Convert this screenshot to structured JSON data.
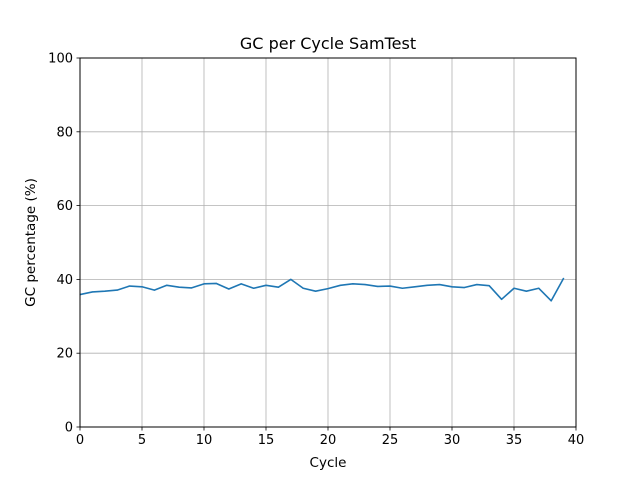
{
  "chart_data": {
    "type": "line",
    "title": "GC per Cycle SamTest",
    "xlabel": "Cycle",
    "ylabel": "GC percentage (%)",
    "xlim": [
      0,
      40
    ],
    "ylim": [
      0,
      100
    ],
    "xticks": [
      0,
      5,
      10,
      15,
      20,
      25,
      30,
      35,
      40
    ],
    "yticks": [
      0,
      20,
      40,
      60,
      80,
      100
    ],
    "xtick_labels": [
      "0",
      "5",
      "10",
      "15",
      "20",
      "25",
      "30",
      "35",
      "40"
    ],
    "ytick_labels": [
      "0",
      "20",
      "40",
      "60",
      "80",
      "100"
    ],
    "grid": true,
    "legend": "none",
    "colors": {
      "line": "#1f77b4",
      "grid": "#b0b0b0",
      "axes": "#000000"
    },
    "series": [
      {
        "x": [
          0,
          1,
          2,
          3,
          4,
          5,
          6,
          7,
          8,
          9,
          10,
          11,
          12,
          13,
          14,
          15,
          16,
          17,
          18,
          19,
          20,
          21,
          22,
          23,
          24,
          25,
          26,
          27,
          28,
          29,
          30,
          31,
          32,
          33,
          34,
          35,
          36,
          37,
          38,
          39
        ],
        "values": [
          35.9,
          36.6,
          36.8,
          37.1,
          38.2,
          38.0,
          37.1,
          38.4,
          37.9,
          37.7,
          38.8,
          38.9,
          37.4,
          38.8,
          37.6,
          38.4,
          37.9,
          40.0,
          37.6,
          36.8,
          37.5,
          38.4,
          38.8,
          38.6,
          38.1,
          38.2,
          37.6,
          38.0,
          38.4,
          38.6,
          38.0,
          37.8,
          38.6,
          38.3,
          34.6,
          37.6,
          36.8,
          37.6,
          34.2,
          40.3
        ]
      }
    ]
  }
}
